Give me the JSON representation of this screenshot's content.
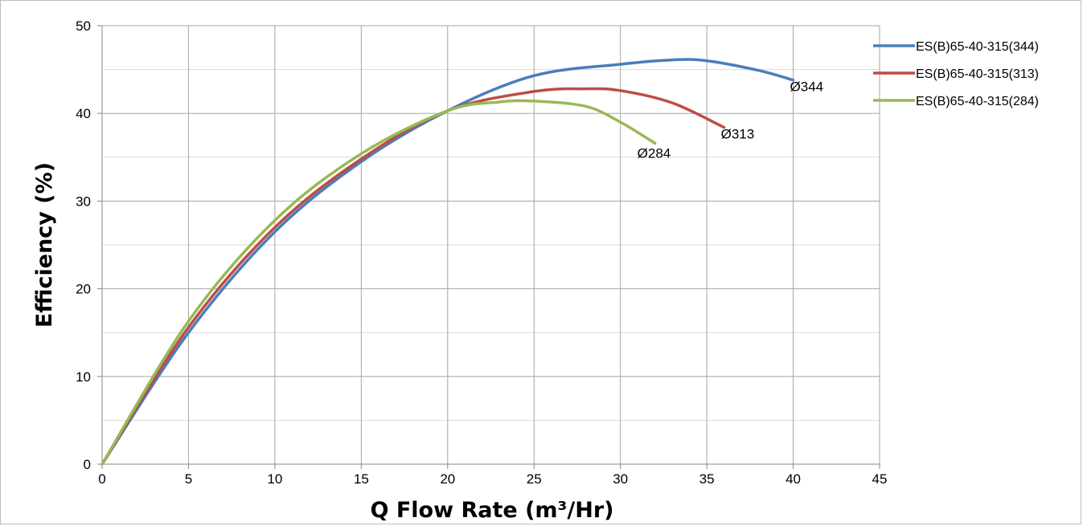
{
  "chart_data": {
    "type": "line",
    "title": "",
    "xlabel": "Q  Flow Rate  (m³/Hr)",
    "ylabel": "Efficiency  (%)",
    "xlim": [
      0,
      45
    ],
    "ylim": [
      0,
      50
    ],
    "x_ticks": [
      0,
      5,
      10,
      15,
      20,
      25,
      30,
      35,
      40,
      45
    ],
    "y_ticks": [
      0,
      10,
      20,
      30,
      40,
      50
    ],
    "grid": true,
    "legend_position": "top-right",
    "series": [
      {
        "name": "ES(B)65-40-315(344)",
        "color": "#4a7ebb",
        "x": [
          0,
          5,
          10,
          15,
          20,
          25,
          30,
          33,
          35,
          38,
          40
        ],
        "y": [
          0,
          15,
          26.5,
          34.5,
          40.3,
          44.3,
          45.6,
          46.1,
          46,
          44.9,
          43.8
        ]
      },
      {
        "name": "ES(B)65-40-315(313)",
        "color": "#be4b48",
        "x": [
          0,
          5,
          10,
          15,
          20,
          25,
          28,
          30,
          33,
          36
        ],
        "y": [
          0,
          15.6,
          27,
          34.8,
          40.3,
          42.5,
          42.8,
          42.6,
          41.2,
          38.4
        ]
      },
      {
        "name": "ES(B)65-40-315(284)",
        "color": "#98b954",
        "x": [
          0,
          5,
          10,
          15,
          20,
          23,
          25,
          28,
          30,
          32
        ],
        "y": [
          0,
          16.3,
          27.8,
          35.4,
          40.3,
          41.3,
          41.4,
          40.8,
          39,
          36.6
        ]
      }
    ],
    "annotations": [
      {
        "text": "Ø344",
        "x": 40,
        "y": 43.8
      },
      {
        "text": "Ø313",
        "x": 36,
        "y": 38.4
      },
      {
        "text": "Ø284",
        "x": 32,
        "y": 36.6
      }
    ]
  }
}
